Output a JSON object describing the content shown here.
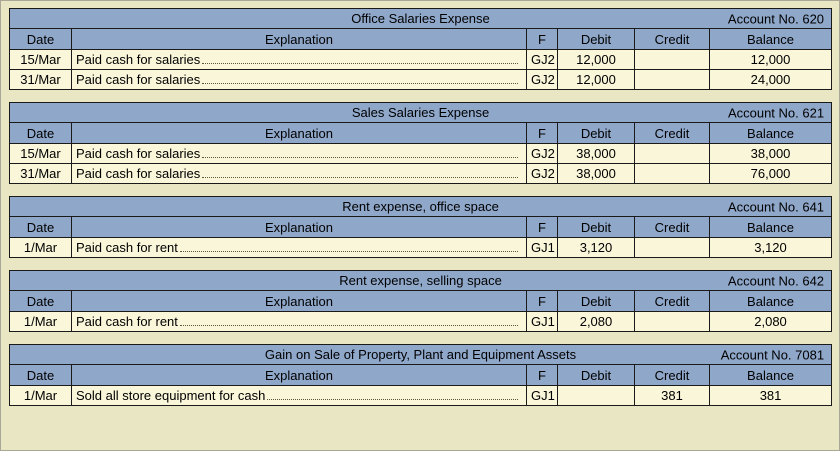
{
  "colors": {
    "header_bg": "#8fa7c9",
    "row_bg": "#faf6da",
    "page_bg": "#e9e7c3"
  },
  "columns": {
    "date": "Date",
    "explanation": "Explanation",
    "f": "F",
    "debit": "Debit",
    "credit": "Credit",
    "balance": "Balance"
  },
  "tables": [
    {
      "title": "Office Salaries Expense",
      "account": "Account No. 620",
      "rows": [
        {
          "date": "15/Mar",
          "explanation": "Paid cash for salaries",
          "f": "GJ2",
          "debit": "12,000",
          "credit": "",
          "balance": "12,000"
        },
        {
          "date": "31/Mar",
          "explanation": "Paid cash for salaries",
          "f": "GJ2",
          "debit": "12,000",
          "credit": "",
          "balance": "24,000"
        }
      ]
    },
    {
      "title": "Sales Salaries Expense",
      "account": "Account No. 621",
      "rows": [
        {
          "date": "15/Mar",
          "explanation": "Paid cash for salaries",
          "f": "GJ2",
          "debit": "38,000",
          "credit": "",
          "balance": "38,000"
        },
        {
          "date": "31/Mar",
          "explanation": "Paid cash for salaries",
          "f": "GJ2",
          "debit": "38,000",
          "credit": "",
          "balance": "76,000"
        }
      ]
    },
    {
      "title": "Rent expense, office space",
      "account": "Account No. 641",
      "rows": [
        {
          "date": "1/Mar",
          "explanation": "Paid cash for rent",
          "f": "GJ1",
          "debit": "3,120",
          "credit": "",
          "balance": "3,120"
        }
      ]
    },
    {
      "title": "Rent expense, selling space",
      "account": "Account No. 642",
      "rows": [
        {
          "date": "1/Mar",
          "explanation": "Paid cash for rent",
          "f": "GJ1",
          "debit": "2,080",
          "credit": "",
          "balance": "2,080"
        }
      ]
    },
    {
      "title": "Gain on Sale of Property, Plant and Equipment Assets",
      "account": "Account No. 7081",
      "rows": [
        {
          "date": "1/Mar",
          "explanation": "Sold all store equipment for cash",
          "f": "GJ1",
          "debit": "",
          "credit": "381",
          "balance": "381"
        }
      ]
    }
  ]
}
